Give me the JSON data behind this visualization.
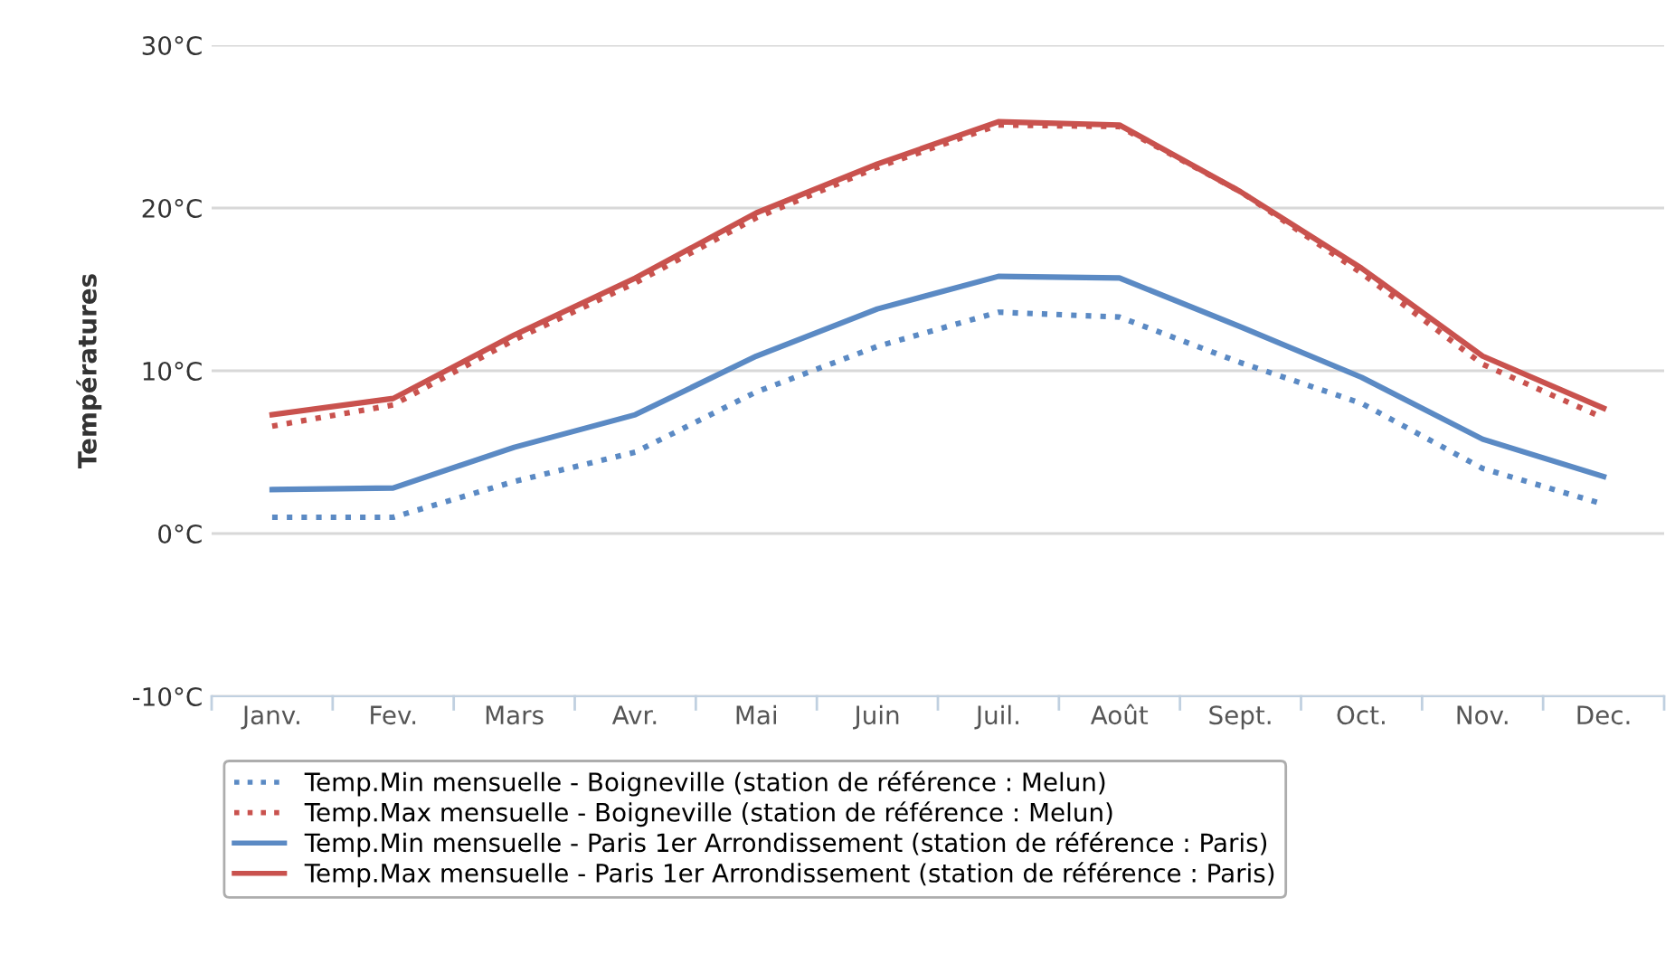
{
  "chart_data": {
    "type": "line",
    "ylabel": "Températures",
    "categories": [
      "Janv.",
      "Fev.",
      "Mars",
      "Avr.",
      "Mai",
      "Juin",
      "Juil.",
      "Août",
      "Sept.",
      "Oct.",
      "Nov.",
      "Dec."
    ],
    "ylim": [
      -10,
      30
    ],
    "yticks": [
      {
        "value": -10,
        "label": "-10°C"
      },
      {
        "value": 0,
        "label": "0°C"
      },
      {
        "value": 10,
        "label": "10°C"
      },
      {
        "value": 20,
        "label": "20°C"
      },
      {
        "value": 30,
        "label": "30°C"
      }
    ],
    "grid": "y",
    "legend": "bottom",
    "marker": "none",
    "series": [
      {
        "name": "Temp.Min mensuelle - Boigneville (station de référence : Melun)",
        "color": "#5b8ac4",
        "line_style": "dotted",
        "values": [
          1.0,
          1.0,
          3.2,
          5.0,
          8.7,
          11.5,
          13.6,
          13.3,
          10.5,
          8.0,
          4.0,
          1.8
        ]
      },
      {
        "name": "Temp.Max mensuelle - Boigneville (station de référence : Melun)",
        "color": "#c9524e",
        "line_style": "dotted",
        "values": [
          6.6,
          7.9,
          11.9,
          15.4,
          19.4,
          22.5,
          25.1,
          25.0,
          21.0,
          16.0,
          10.4,
          7.1
        ]
      },
      {
        "name": "Temp.Min mensuelle - Paris 1er Arrondissement (station de référence : Paris)",
        "color": "#5b8ac4",
        "line_style": "solid",
        "values": [
          2.7,
          2.8,
          5.3,
          7.3,
          10.9,
          13.8,
          15.8,
          15.7,
          12.7,
          9.6,
          5.8,
          3.5
        ]
      },
      {
        "name": "Temp.Max mensuelle - Paris 1er Arrondissement (station de référence : Paris)",
        "color": "#c9524e",
        "line_style": "solid",
        "values": [
          7.3,
          8.3,
          12.2,
          15.7,
          19.7,
          22.7,
          25.3,
          25.1,
          21.0,
          16.3,
          10.9,
          7.7
        ]
      }
    ]
  }
}
